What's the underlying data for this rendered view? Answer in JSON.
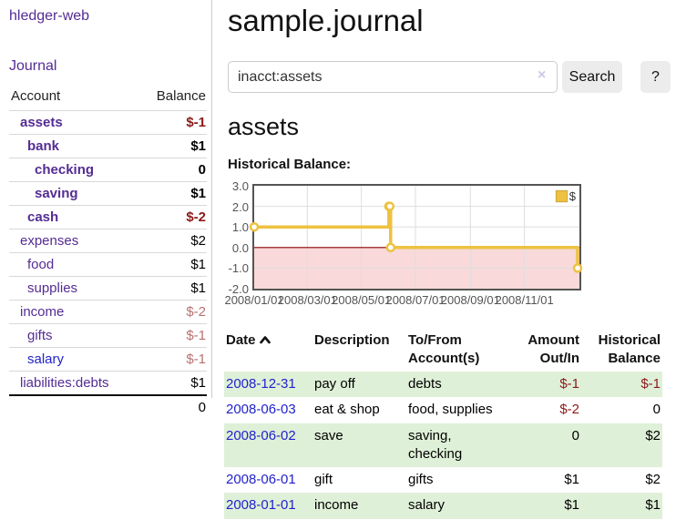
{
  "app": {
    "brand": "hledger-web",
    "nav": {
      "journal_label": "Journal"
    }
  },
  "colors": {
    "accent_purple": "#542c94",
    "link_blue": "#2222cc",
    "negative_strong": "#8b1a1a",
    "negative_muted": "#b97070",
    "row_green": "#dff0d8",
    "chart_gold": "#edc240",
    "chart_negative_region": "#f9d9d9",
    "zero_line": "#8b0000"
  },
  "icons": {
    "date_sort": "chevron-up",
    "clear_search": "x-mark"
  },
  "sidebar": {
    "account_header": "Account",
    "balance_header": "Balance",
    "accounts": [
      {
        "name": "assets",
        "balance": "$-1"
      },
      {
        "name": "bank",
        "balance": "$1"
      },
      {
        "name": "checking",
        "balance": "0"
      },
      {
        "name": "saving",
        "balance": "$1"
      },
      {
        "name": "cash",
        "balance": "$-2"
      },
      {
        "name": "expenses",
        "balance": "$2"
      },
      {
        "name": "food",
        "balance": "$1"
      },
      {
        "name": "supplies",
        "balance": "$1"
      },
      {
        "name": "income",
        "balance": "$-2"
      },
      {
        "name": "gifts",
        "balance": "$-1"
      },
      {
        "name": "salary",
        "balance": "$-1"
      },
      {
        "name": "liabilities:debts",
        "balance": "$1"
      }
    ],
    "total": "0"
  },
  "main": {
    "title": "sample.journal",
    "search": {
      "value": "inacct:assets",
      "clear_icon": "×",
      "search_button": "Search",
      "help_button": "?"
    },
    "account_heading": "assets",
    "chart_title": "Historical Balance:"
  },
  "chart_data": {
    "type": "line",
    "title": "Historical Balance:",
    "step": true,
    "xlim": [
      "2008-01-01",
      "2008-12-31"
    ],
    "ylim": [
      -2.0,
      3.0
    ],
    "y_ticks": [
      3,
      2,
      1,
      0,
      -1,
      -2
    ],
    "x_ticks": [
      "2008/01/01",
      "2008/03/01",
      "2008/05/01",
      "2008/07/01",
      "2008/09/01",
      "2008/11/01"
    ],
    "legend_position": "top-right",
    "series": [
      {
        "name": "$",
        "color": "#edc240",
        "points": [
          [
            "2008-01-01",
            1
          ],
          [
            "2008-06-01",
            2
          ],
          [
            "2008-06-02",
            2
          ],
          [
            "2008-06-03",
            0
          ],
          [
            "2008-12-31",
            -1
          ]
        ]
      }
    ]
  },
  "register": {
    "headers": {
      "date": "Date",
      "description": "Description",
      "account": "To/From Account(s)",
      "amount": "Amount Out/In",
      "balance": "Historical Balance"
    },
    "rows": [
      {
        "date": "2008-12-31",
        "description": "pay off",
        "account": "debts",
        "amount": "$-1",
        "balance": "$-1"
      },
      {
        "date": "2008-06-03",
        "description": "eat & shop",
        "account": "food, supplies",
        "amount": "$-2",
        "balance": "0"
      },
      {
        "date": "2008-06-02",
        "description": "save",
        "account": "saving, checking",
        "amount": "0",
        "balance": "$2"
      },
      {
        "date": "2008-06-01",
        "description": "gift",
        "account": "gifts",
        "amount": "$1",
        "balance": "$2"
      },
      {
        "date": "2008-01-01",
        "description": "income",
        "account": "salary",
        "amount": "$1",
        "balance": "$1"
      }
    ]
  }
}
